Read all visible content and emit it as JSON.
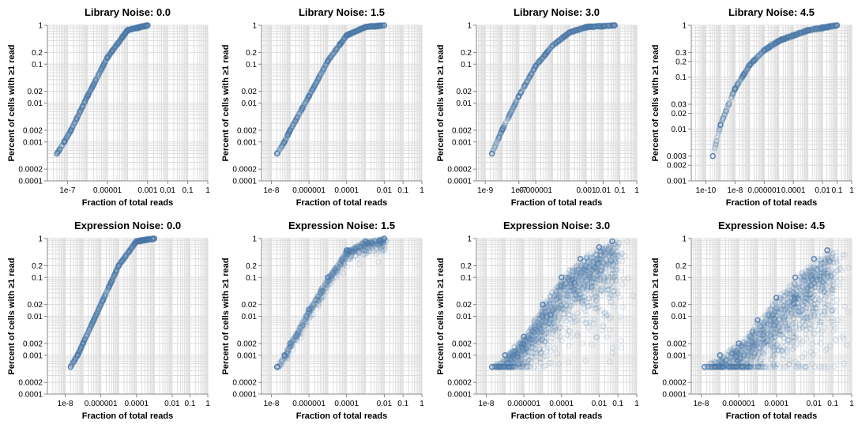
{
  "figure": {
    "point_color": "#4c78a8",
    "point_opacity": 0.15,
    "grid_color": "#dddddd"
  },
  "chart_data": [
    {
      "type": "scatter",
      "title": "Library Noise: 0.0",
      "xlabel": "Fraction of total reads",
      "ylabel": "Percent of cells with ≥1 read",
      "x_scale": "log",
      "y_scale": "log",
      "xlim": [
        1e-08,
        1
      ],
      "ylim": [
        0.0001,
        1
      ],
      "xticks": [
        "1e-7",
        "0.00001",
        "0.001",
        "0.01",
        "0.1",
        "1"
      ],
      "yticks": [
        "0.0001",
        "0.0002",
        "0.001",
        "0.002",
        "0.01",
        "0.02",
        "0.1",
        "0.2",
        "1"
      ],
      "grid": true,
      "curve": {
        "x_min": 3e-08,
        "y_min": 0.0005,
        "x_saturation": 0.001,
        "scatter": 0.0
      },
      "points": [
        [
          3e-08,
          0.0005
        ],
        [
          7e-08,
          0.001
        ],
        [
          1.5e-07,
          0.002
        ],
        [
          1e-06,
          0.015
        ],
        [
          1e-05,
          0.15
        ],
        [
          0.0001,
          0.75
        ],
        [
          0.001,
          1
        ]
      ]
    },
    {
      "type": "scatter",
      "title": "Library Noise: 1.5",
      "xlabel": "Fraction of total reads",
      "ylabel": "Percent of cells with ≥1 read",
      "x_scale": "log",
      "y_scale": "log",
      "xlim": [
        3e-09,
        1
      ],
      "ylim": [
        0.0001,
        1
      ],
      "xticks": [
        "1e-8",
        "0.000001",
        "0.0001",
        "0.01",
        "0.1",
        "1"
      ],
      "yticks": [
        "0.0001",
        "0.0002",
        "0.001",
        "0.002",
        "0.01",
        "0.02",
        "0.1",
        "0.2",
        "1"
      ],
      "grid": true,
      "curve": {
        "x_min": 2e-08,
        "y_min": 0.0005,
        "x_saturation": 0.01,
        "scatter": 0.0
      },
      "points": [
        [
          2e-08,
          0.0005
        ],
        [
          5e-08,
          0.001
        ],
        [
          1e-07,
          0.002
        ],
        [
          1e-06,
          0.015
        ],
        [
          1e-05,
          0.12
        ],
        [
          0.0001,
          0.55
        ],
        [
          0.001,
          0.9
        ],
        [
          0.01,
          1
        ]
      ]
    },
    {
      "type": "scatter",
      "title": "Library Noise: 3.0",
      "xlabel": "Fraction of total reads",
      "ylabel": "Percent of cells with ≥1 read",
      "x_scale": "log",
      "y_scale": "log",
      "xlim": [
        3e-10,
        1
      ],
      "ylim": [
        0.0001,
        1
      ],
      "xticks": [
        "1e-9",
        "1e-7",
        "0.000001",
        "0.001",
        "0.01",
        "0.1",
        "1"
      ],
      "yticks": [
        "0.0001",
        "0.0002",
        "0.001",
        "0.002",
        "0.01",
        "0.02",
        "0.1",
        "0.2",
        "1"
      ],
      "grid": true,
      "curve": {
        "x_min": 2.5e-09,
        "y_min": 0.0005,
        "x_saturation": 0.05,
        "scatter": 0.0
      },
      "points": [
        [
          2.5e-09,
          0.0005
        ],
        [
          1e-08,
          0.002
        ],
        [
          1e-07,
          0.015
        ],
        [
          1e-06,
          0.09
        ],
        [
          1e-05,
          0.3
        ],
        [
          0.0001,
          0.65
        ],
        [
          0.001,
          0.9
        ],
        [
          0.05,
          1
        ]
      ]
    },
    {
      "type": "scatter",
      "title": "Library Noise: 4.5",
      "xlabel": "Fraction of total reads",
      "ylabel": "Percent of cells with ≥1 read",
      "x_scale": "log",
      "y_scale": "log",
      "xlim": [
        1e-11,
        1
      ],
      "ylim": [
        0.001,
        1
      ],
      "xticks": [
        "1e-10",
        "1e-8",
        "0.000001",
        "0.0001",
        "0.01",
        "0.1",
        "1"
      ],
      "yticks": [
        "0.001",
        "0.002",
        "0.003",
        "0.01",
        "0.02",
        "0.03",
        "0.1",
        "0.2",
        "0.3",
        "1"
      ],
      "grid": true,
      "curve": {
        "x_min": 3e-10,
        "y_min": 0.003,
        "x_saturation": 0.1,
        "scatter": 0.0
      },
      "points": [
        [
          3e-10,
          0.003
        ],
        [
          1e-09,
          0.012
        ],
        [
          1e-08,
          0.06
        ],
        [
          1e-07,
          0.17
        ],
        [
          1e-06,
          0.33
        ],
        [
          1e-05,
          0.5
        ],
        [
          0.001,
          0.8
        ],
        [
          0.1,
          1
        ]
      ]
    },
    {
      "type": "scatter",
      "title": "Expression Noise: 0.0",
      "xlabel": "Fraction of total reads",
      "ylabel": "Percent of cells with ≥1 read",
      "x_scale": "log",
      "y_scale": "log",
      "xlim": [
        1e-09,
        1
      ],
      "ylim": [
        0.0001,
        1
      ],
      "xticks": [
        "1e-8",
        "0.000001",
        "0.0001",
        "0.01",
        "0.1",
        "1"
      ],
      "yticks": [
        "0.0001",
        "0.0002",
        "0.001",
        "0.002",
        "0.01",
        "0.02",
        "0.1",
        "0.2",
        "1"
      ],
      "grid": true,
      "curve": {
        "x_min": 2e-08,
        "y_min": 0.0005,
        "x_saturation": 0.001,
        "scatter": 0.0
      },
      "points": [
        [
          2e-08,
          0.0005
        ],
        [
          5e-08,
          0.001
        ],
        [
          1e-07,
          0.002
        ],
        [
          1e-06,
          0.02
        ],
        [
          1e-05,
          0.2
        ],
        [
          0.0001,
          0.85
        ],
        [
          0.001,
          1
        ]
      ]
    },
    {
      "type": "scatter",
      "title": "Expression Noise: 1.5",
      "xlabel": "Fraction of total reads",
      "ylabel": "Percent of cells with ≥1 read",
      "x_scale": "log",
      "y_scale": "log",
      "xlim": [
        3e-09,
        1
      ],
      "ylim": [
        0.0001,
        1
      ],
      "xticks": [
        "1e-8",
        "0.000001",
        "0.0001",
        "0.01",
        "0.1",
        "1"
      ],
      "yticks": [
        "0.0001",
        "0.0002",
        "0.001",
        "0.002",
        "0.01",
        "0.02",
        "0.1",
        "0.2",
        "1"
      ],
      "grid": true,
      "curve": {
        "x_min": 2e-08,
        "y_min": 0.0005,
        "x_saturation": 0.01,
        "scatter": 0.15
      },
      "points": [
        [
          2e-08,
          0.0005
        ],
        [
          5e-08,
          0.001
        ],
        [
          1e-07,
          0.002
        ],
        [
          1e-06,
          0.015
        ],
        [
          1e-05,
          0.1
        ],
        [
          0.0001,
          0.5
        ],
        [
          0.001,
          0.85
        ],
        [
          0.01,
          1
        ]
      ]
    },
    {
      "type": "scatter",
      "title": "Expression Noise: 3.0",
      "xlabel": "Fraction of total reads",
      "ylabel": "Percent of cells with ≥1 read",
      "x_scale": "log",
      "y_scale": "log",
      "xlim": [
        3e-09,
        1
      ],
      "ylim": [
        0.0001,
        1
      ],
      "xticks": [
        "1e-8",
        "0.000001",
        "0.0001",
        "0.01",
        "0.1",
        "1"
      ],
      "yticks": [
        "0.0001",
        "0.0002",
        "0.001",
        "0.002",
        "0.01",
        "0.02",
        "0.1",
        "0.2",
        "1"
      ],
      "grid": true,
      "curve": {
        "x_min": 2e-08,
        "y_min": 0.0005,
        "x_saturation": 0.05,
        "scatter": 0.8
      },
      "points": [
        [
          2e-08,
          0.0005
        ],
        [
          1e-07,
          0.001
        ],
        [
          1e-06,
          0.003
        ],
        [
          1e-05,
          0.02
        ],
        [
          0.0001,
          0.1
        ],
        [
          0.001,
          0.3
        ],
        [
          0.01,
          0.6
        ],
        [
          0.05,
          0.85
        ]
      ]
    },
    {
      "type": "scatter",
      "title": "Expression Noise: 4.5",
      "xlabel": "Fraction of total reads",
      "ylabel": "Percent of cells with ≥1 read",
      "x_scale": "log",
      "y_scale": "log",
      "xlim": [
        3e-09,
        1
      ],
      "ylim": [
        0.0001,
        1
      ],
      "xticks": [
        "1e-8",
        "0.000001",
        "0.0001",
        "0.01",
        "0.1",
        "1"
      ],
      "yticks": [
        "0.0001",
        "0.0002",
        "0.001",
        "0.002",
        "0.01",
        "0.02",
        "0.1",
        "0.2",
        "1"
      ],
      "grid": true,
      "curve": {
        "x_min": 1.5e-08,
        "y_min": 0.0005,
        "x_saturation": 0.05,
        "scatter": 1.0
      },
      "points": [
        [
          1.5e-08,
          0.0005
        ],
        [
          1e-07,
          0.001
        ],
        [
          1e-06,
          0.002
        ],
        [
          1e-05,
          0.008
        ],
        [
          0.0001,
          0.03
        ],
        [
          0.001,
          0.1
        ],
        [
          0.01,
          0.3
        ],
        [
          0.05,
          0.5
        ]
      ]
    }
  ]
}
